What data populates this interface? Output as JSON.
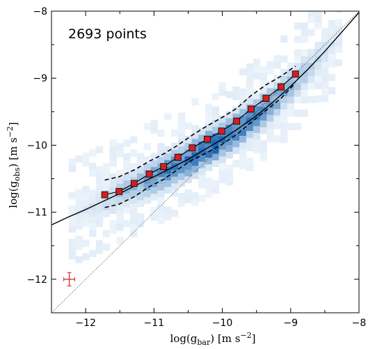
{
  "chart_data": {
    "type": "scatter",
    "annotation": "2693 points",
    "xlabel": "log(g_bar) [m s^-2]",
    "ylabel": "log(g_obs) [m s^-2]",
    "xlim": [
      -12.5,
      -8
    ],
    "ylim": [
      -12.5,
      -8
    ],
    "x_ticks": [
      -12,
      -11,
      -10,
      -9,
      -8
    ],
    "y_ticks": [
      -12,
      -11,
      -10,
      -9,
      -8
    ],
    "x_tick_labels": [
      "−12",
      "−11",
      "−10",
      "−9",
      "−8"
    ],
    "y_tick_labels": [
      "−12",
      "−11",
      "−10",
      "−9",
      "−8"
    ],
    "grid": false,
    "binned_means": {
      "x": [
        -11.72,
        -11.51,
        -11.29,
        -11.07,
        -10.86,
        -10.65,
        -10.44,
        -10.22,
        -10.01,
        -9.79,
        -9.58,
        -9.36,
        -9.14,
        -8.93
      ],
      "y": [
        -10.74,
        -10.69,
        -10.57,
        -10.43,
        -10.32,
        -10.18,
        -10.04,
        -9.91,
        -9.79,
        -9.64,
        -9.46,
        -9.3,
        -9.13,
        -8.94
      ],
      "color": "#d21f1f"
    },
    "scatter_band": {
      "upper_x": [
        -11.72,
        -11.51,
        -11.29,
        -11.07,
        -10.86,
        -10.65,
        -10.44,
        -10.22,
        -10.01,
        -9.79,
        -9.58,
        -9.36,
        -9.14,
        -8.93
      ],
      "upper_y": [
        -10.52,
        -10.47,
        -10.37,
        -10.24,
        -10.13,
        -10.0,
        -9.85,
        -9.71,
        -9.59,
        -9.45,
        -9.26,
        -9.1,
        -8.97,
        -8.82
      ],
      "lower_x": [
        -11.72,
        -11.51,
        -11.29,
        -11.07,
        -10.86,
        -10.65,
        -10.44,
        -10.22,
        -10.01,
        -9.79,
        -9.58,
        -9.36,
        -9.14,
        -8.93
      ],
      "lower_y": [
        -10.93,
        -10.88,
        -10.77,
        -10.62,
        -10.51,
        -10.36,
        -10.22,
        -10.11,
        -9.99,
        -9.84,
        -9.66,
        -9.48,
        -9.3,
        -9.07
      ]
    },
    "fit_curve": {
      "x": [
        -12.5,
        -12.25,
        -12.0,
        -11.75,
        -11.5,
        -11.25,
        -11.0,
        -10.75,
        -10.5,
        -10.25,
        -10.0,
        -9.75,
        -9.5,
        -9.25,
        -9.0,
        -8.75,
        -8.5,
        -8.25,
        -8.0
      ],
      "y": [
        -11.19,
        -11.07,
        -10.96,
        -10.84,
        -10.72,
        -10.59,
        -10.47,
        -10.34,
        -10.21,
        -10.06,
        -9.91,
        -9.74,
        -9.56,
        -9.35,
        -9.12,
        -8.87,
        -8.6,
        -8.31,
        -8.02
      ]
    },
    "unity_line": {
      "x": [
        -12.5,
        -8
      ],
      "y": [
        -12.5,
        -8
      ]
    },
    "error_bar": {
      "x": -12.24,
      "y": -12.0,
      "xerr": 0.08,
      "yerr": 0.1,
      "color": "#d21f1f"
    },
    "density_colormap": "Blues"
  }
}
